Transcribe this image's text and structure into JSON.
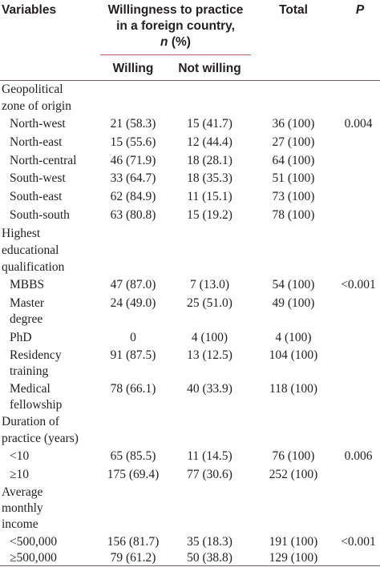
{
  "headers": {
    "variables": "Variables",
    "willingness_line1": "Willingness to practice",
    "willingness_line2": "in a foreign country,",
    "willingness_n": "n",
    "willingness_pct": " (%)",
    "total": "Total",
    "p": "P",
    "willing": "Willing",
    "not_willing": "Not willing"
  },
  "groups": {
    "zone": [
      "Geopolitical",
      "zone of origin"
    ],
    "education": [
      "Highest",
      "educational",
      "qualification"
    ],
    "duration": [
      "Duration of",
      "practice (years)"
    ],
    "income": [
      "Average",
      "monthly",
      "income"
    ]
  },
  "rows": {
    "zone": [
      {
        "label": "North-west",
        "willing": "21 (58.3)",
        "not_willing": "15 (41.7)",
        "total": "36 (100)",
        "p": "0.004"
      },
      {
        "label": "North-east",
        "willing": "15 (55.6)",
        "not_willing": "12 (44.4)",
        "total": "27 (100)",
        "p": ""
      },
      {
        "label": "North-central",
        "willing": "46 (71.9)",
        "not_willing": "18 (28.1)",
        "total": "64 (100)",
        "p": ""
      },
      {
        "label": "South-west",
        "willing": "33 (64.7)",
        "not_willing": "18 (35.3)",
        "total": "51 (100)",
        "p": ""
      },
      {
        "label": "South-east",
        "willing": "62 (84.9)",
        "not_willing": "11 (15.1)",
        "total": "73 (100)",
        "p": ""
      },
      {
        "label": "South-south",
        "willing": "63 (80.8)",
        "not_willing": "15 (19.2)",
        "total": "78 (100)",
        "p": ""
      }
    ],
    "education": [
      {
        "label": "MBBS",
        "label2": "",
        "willing": "47 (87.0)",
        "not_willing": "7 (13.0)",
        "total": "54 (100)",
        "p": "<0.001"
      },
      {
        "label": "Master",
        "label2": "degree",
        "willing": "24 (49.0)",
        "not_willing": "25 (51.0)",
        "total": "49 (100)",
        "p": ""
      },
      {
        "label": "PhD",
        "label2": "",
        "willing": "0",
        "not_willing": "4 (100)",
        "total": "4 (100)",
        "p": ""
      },
      {
        "label": "Residency",
        "label2": "training",
        "willing": "91 (87.5)",
        "not_willing": "13 (12.5)",
        "total": "104 (100)",
        "p": ""
      },
      {
        "label": "Medical",
        "label2": "fellowship",
        "willing": "78 (66.1)",
        "not_willing": "40 (33.9)",
        "total": "118 (100)",
        "p": ""
      }
    ],
    "duration": [
      {
        "label": "<10",
        "willing": "65 (85.5)",
        "not_willing": "11 (14.5)",
        "total": "76 (100)",
        "p": "0.006"
      },
      {
        "label": "≥10",
        "willing": "175 (69.4)",
        "not_willing": "77 (30.6)",
        "total": "252 (100)",
        "p": ""
      }
    ],
    "income": [
      {
        "label": "<500,000",
        "willing": "156 (81.7)",
        "not_willing": "35 (18.3)",
        "total": "191 (100)",
        "p": "<0.001"
      },
      {
        "label": "≥500,000",
        "willing": "79 (61.2)",
        "not_willing": "50 (38.8)",
        "total": "129 (100)",
        "p": ""
      }
    ]
  }
}
